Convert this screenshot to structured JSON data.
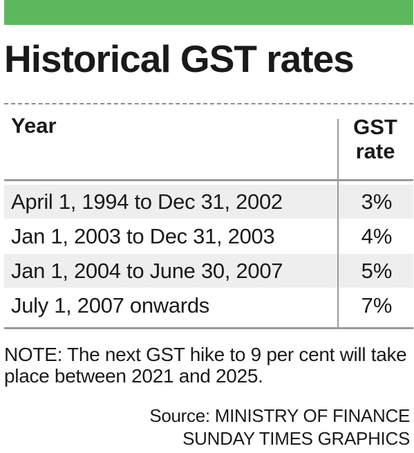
{
  "colors": {
    "accent_bar": "#5cb85c",
    "row_shade": "#eeeeee",
    "rule": "#9a9a9a",
    "text": "#1a1a1a"
  },
  "chart_data": {
    "type": "table",
    "title": "Historical GST rates",
    "columns": [
      "Year",
      [
        "GST",
        "rate"
      ]
    ],
    "rows": [
      {
        "period": "April 1, 1994 to Dec 31, 2002",
        "rate": "3%",
        "value": 3
      },
      {
        "period": "Jan 1, 2003 to Dec 31, 2003",
        "rate": "4%",
        "value": 4
      },
      {
        "period": "Jan 1, 2004 to June 30, 2007",
        "rate": "5%",
        "value": 5
      },
      {
        "period": "July 1, 2007 onwards",
        "rate": "7%",
        "value": 7
      }
    ],
    "note": "NOTE: The next GST hike to 9 per cent will take place between 2021 and 2025.",
    "source": [
      "Source: MINISTRY OF FINANCE",
      "SUNDAY TIMES GRAPHICS"
    ]
  }
}
